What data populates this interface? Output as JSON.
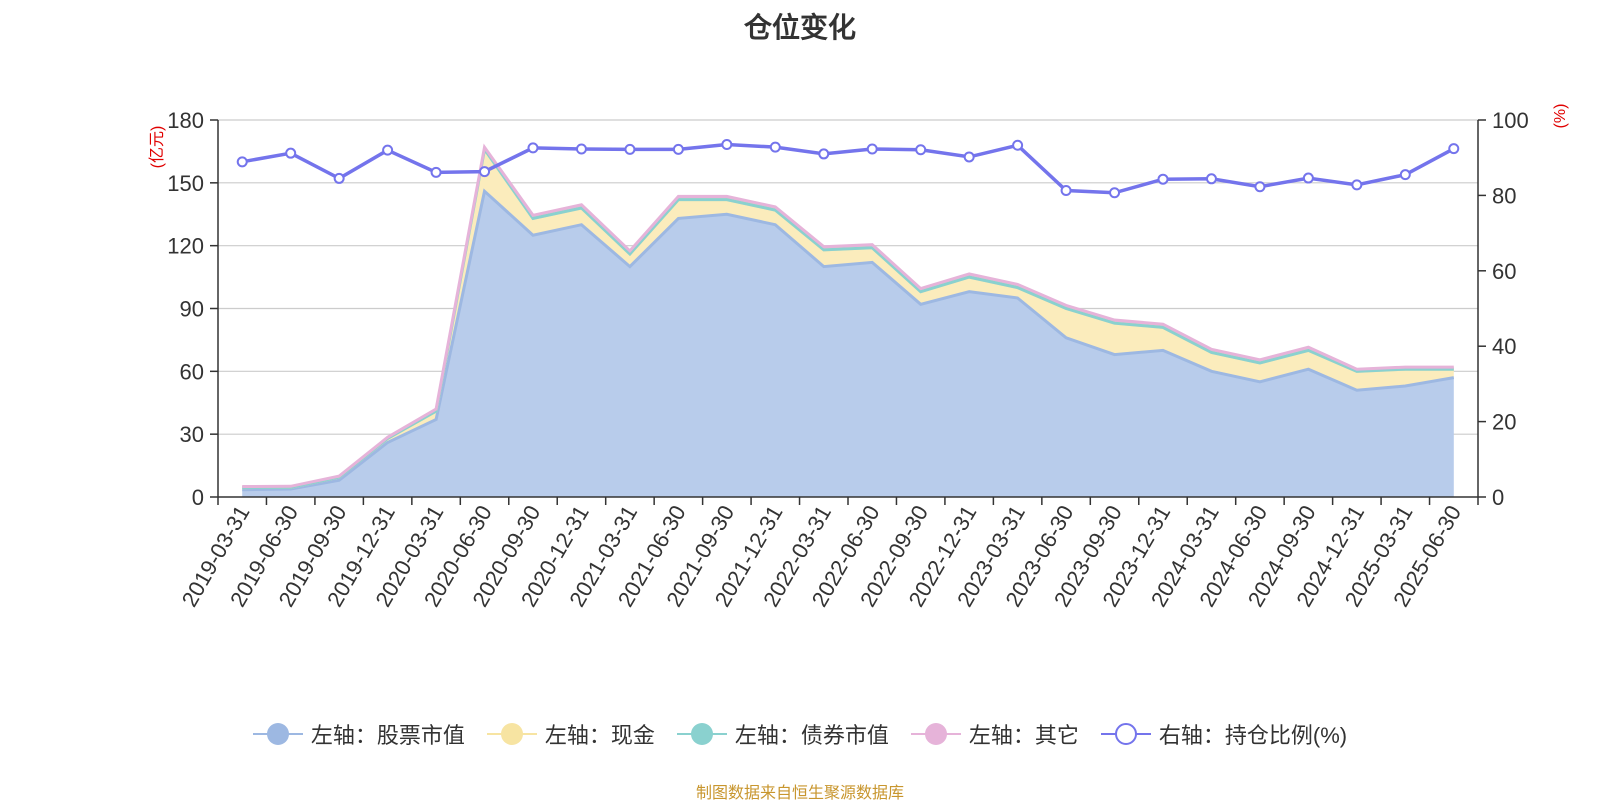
{
  "title": "仓位变化",
  "source_note": "制图数据来自恒生聚源数据库",
  "chart_data": {
    "type": "area",
    "title": "仓位变化",
    "left_axis": {
      "unit": "(亿元)",
      "ylim": [
        0,
        180
      ],
      "ticks": [
        "0",
        "30",
        "60",
        "90",
        "120",
        "150",
        "180"
      ]
    },
    "right_axis": {
      "unit": "(%)",
      "ylim": [
        0,
        100
      ],
      "ticks": [
        "0",
        "20",
        "40",
        "60",
        "80",
        "100"
      ]
    },
    "grid": true,
    "legend_position": "bottom",
    "categories": [
      "2019-03-31",
      "2019-06-30",
      "2019-09-30",
      "2019-12-31",
      "2020-03-31",
      "2020-06-30",
      "2020-09-30",
      "2020-12-31",
      "2021-03-31",
      "2021-06-30",
      "2021-09-30",
      "2021-12-31",
      "2022-03-31",
      "2022-06-30",
      "2022-09-30",
      "2022-12-31",
      "2023-03-31",
      "2023-06-30",
      "2023-09-30",
      "2023-12-31",
      "2024-03-31",
      "2024-06-30",
      "2024-09-30",
      "2024-12-31",
      "2025-03-31",
      "2025-06-30"
    ],
    "series": [
      {
        "name": "左轴：股票市值",
        "axis": "left",
        "color": "#9db8e2",
        "fill": "#b8cceb",
        "values": [
          3.5,
          3.8,
          8,
          26,
          37,
          146,
          125,
          130,
          110,
          133,
          135,
          130,
          110,
          112,
          92,
          98,
          95,
          76,
          68,
          70,
          60,
          55,
          61,
          51,
          53,
          57
        ]
      },
      {
        "name": "左轴：现金",
        "axis": "left",
        "color": "#f7e4a2",
        "fill": "#fbecbc",
        "values": [
          1,
          0.8,
          1.5,
          2,
          4,
          20,
          8,
          8,
          6,
          9,
          7,
          7,
          8,
          7,
          6,
          7,
          5,
          14,
          15,
          11,
          9,
          9,
          9,
          9,
          8,
          4
        ]
      },
      {
        "name": "左轴：债券市值",
        "axis": "left",
        "color": "#8ad1cf",
        "fill": "#8ad1cf",
        "values": [
          0,
          0,
          0,
          0,
          0,
          0,
          0,
          0,
          0,
          0,
          0,
          0,
          0,
          0,
          0,
          0,
          0,
          0,
          0,
          0,
          0,
          0,
          0,
          0,
          0,
          0
        ]
      },
      {
        "name": "左轴：其它",
        "axis": "left",
        "color": "#e6b3d9",
        "fill": "#e6b3d9",
        "values": [
          0.5,
          0.5,
          0.5,
          0.5,
          1,
          1,
          1.5,
          1.5,
          1.5,
          1.5,
          1.5,
          1.5,
          1.5,
          1.5,
          1.5,
          1.5,
          1.5,
          1.5,
          1.5,
          1.5,
          1.5,
          1.5,
          1.5,
          1,
          1,
          1
        ]
      },
      {
        "name": "右轴：持仓比例(%)",
        "axis": "right",
        "color": "#7474ec",
        "values": [
          88.9,
          91.2,
          84.5,
          92.0,
          86.1,
          86.3,
          92.6,
          92.3,
          92.2,
          92.2,
          93.5,
          92.8,
          91.0,
          92.3,
          92.1,
          90.2,
          93.3,
          81.3,
          80.7,
          84.3,
          84.4,
          82.3,
          84.6,
          82.8,
          85.5,
          92.4
        ]
      }
    ]
  }
}
